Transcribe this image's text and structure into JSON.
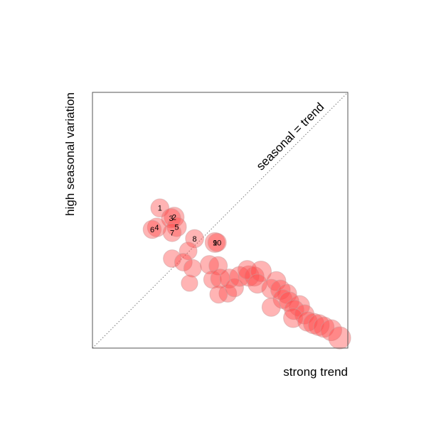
{
  "chart_data": {
    "type": "scatter",
    "title": "",
    "xlabel": "strong trend",
    "ylabel": "high seasonal variation",
    "xlim": [
      0,
      1
    ],
    "ylim": [
      0,
      1
    ],
    "grid": false,
    "legend": "none",
    "reference_line": {
      "label": "seasonal = trend",
      "slope": 1,
      "intercept": 0
    },
    "point_color": "#ff4d4d",
    "point_fill_opacity": 0.42,
    "points": [
      {
        "x": 0.264,
        "y": 0.548,
        "size": 0.6,
        "label": "1"
      },
      {
        "x": 0.32,
        "y": 0.512,
        "size": 0.75,
        "label": "2"
      },
      {
        "x": 0.308,
        "y": 0.508,
        "size": 0.7,
        "label": "3"
      },
      {
        "x": 0.252,
        "y": 0.472,
        "size": 0.65,
        "label": "4"
      },
      {
        "x": 0.33,
        "y": 0.474,
        "size": 0.7,
        "label": "5"
      },
      {
        "x": 0.234,
        "y": 0.464,
        "size": 0.6,
        "label": "6"
      },
      {
        "x": 0.312,
        "y": 0.452,
        "size": 0.6,
        "label": "7"
      },
      {
        "x": 0.4,
        "y": 0.428,
        "size": 0.6,
        "label": "8"
      },
      {
        "x": 0.48,
        "y": 0.413,
        "size": 0.75,
        "label": "9"
      },
      {
        "x": 0.488,
        "y": 0.413,
        "size": 0.62,
        "label": "10"
      },
      {
        "x": 0.375,
        "y": 0.38,
        "size": 0.55
      },
      {
        "x": 0.312,
        "y": 0.35,
        "size": 0.55
      },
      {
        "x": 0.356,
        "y": 0.336,
        "size": 0.55
      },
      {
        "x": 0.392,
        "y": 0.312,
        "size": 0.55
      },
      {
        "x": 0.38,
        "y": 0.254,
        "size": 0.45
      },
      {
        "x": 0.458,
        "y": 0.326,
        "size": 0.62
      },
      {
        "x": 0.492,
        "y": 0.322,
        "size": 0.62
      },
      {
        "x": 0.47,
        "y": 0.268,
        "size": 0.55
      },
      {
        "x": 0.5,
        "y": 0.272,
        "size": 0.68
      },
      {
        "x": 0.536,
        "y": 0.272,
        "size": 0.68
      },
      {
        "x": 0.53,
        "y": 0.214,
        "size": 0.55
      },
      {
        "x": 0.494,
        "y": 0.21,
        "size": 0.55
      },
      {
        "x": 0.556,
        "y": 0.236,
        "size": 0.6
      },
      {
        "x": 0.576,
        "y": 0.28,
        "size": 0.75
      },
      {
        "x": 0.612,
        "y": 0.282,
        "size": 0.8
      },
      {
        "x": 0.634,
        "y": 0.28,
        "size": 0.7
      },
      {
        "x": 0.606,
        "y": 0.306,
        "size": 0.65
      },
      {
        "x": 0.66,
        "y": 0.3,
        "size": 0.82
      },
      {
        "x": 0.646,
        "y": 0.252,
        "size": 0.68
      },
      {
        "x": 0.72,
        "y": 0.262,
        "size": 0.68
      },
      {
        "x": 0.7,
        "y": 0.232,
        "size": 0.68
      },
      {
        "x": 0.736,
        "y": 0.228,
        "size": 0.72
      },
      {
        "x": 0.762,
        "y": 0.212,
        "size": 0.7
      },
      {
        "x": 0.745,
        "y": 0.192,
        "size": 0.68
      },
      {
        "x": 0.77,
        "y": 0.182,
        "size": 0.72
      },
      {
        "x": 0.81,
        "y": 0.165,
        "size": 0.82
      },
      {
        "x": 0.79,
        "y": 0.15,
        "size": 0.72
      },
      {
        "x": 0.83,
        "y": 0.132,
        "size": 0.7
      },
      {
        "x": 0.786,
        "y": 0.118,
        "size": 0.7
      },
      {
        "x": 0.842,
        "y": 0.104,
        "size": 0.72
      },
      {
        "x": 0.866,
        "y": 0.096,
        "size": 0.8
      },
      {
        "x": 0.886,
        "y": 0.09,
        "size": 0.85
      },
      {
        "x": 0.906,
        "y": 0.082,
        "size": 0.8
      },
      {
        "x": 0.935,
        "y": 0.07,
        "size": 0.85
      },
      {
        "x": 0.968,
        "y": 0.04,
        "size": 0.95
      },
      {
        "x": 0.7,
        "y": 0.16,
        "size": 0.62
      }
    ]
  }
}
